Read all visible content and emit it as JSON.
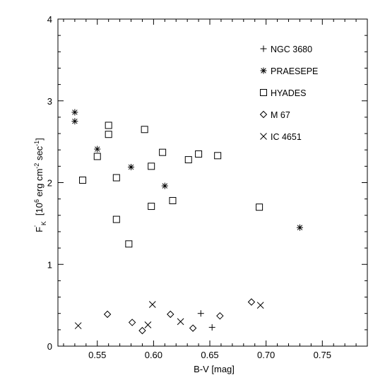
{
  "chart_data": {
    "type": "scatter",
    "title": "",
    "xlabel": "B-V  [mag]",
    "ylabel": {
      "symbol": "F",
      "symbol_sup": "'",
      "symbol_sub": "K",
      "units_open": "[10",
      "units_exp": "6",
      "units_mid": " erg cm",
      "units_exp2": "-2",
      "units_mid2": " sec",
      "units_exp3": "-1",
      "units_close": "]"
    },
    "xlim": [
      0.515,
      0.79
    ],
    "ylim": [
      0,
      4
    ],
    "xticks": [
      0.55,
      0.6,
      0.65,
      0.7,
      0.75
    ],
    "xtick_labels": [
      "0.55",
      "0.60",
      "0.65",
      "0.70",
      "0.75"
    ],
    "yticks": [
      0,
      1,
      2,
      3,
      4
    ],
    "ytick_labels": [
      "0",
      "1",
      "2",
      "3",
      "4"
    ],
    "legend_position": "top-right",
    "series": [
      {
        "name": "NGC 3680",
        "marker": "plus",
        "points": [
          [
            0.642,
            0.4
          ],
          [
            0.652,
            0.23
          ]
        ]
      },
      {
        "name": "PRAESEPE",
        "marker": "asterisk",
        "points": [
          [
            0.53,
            2.86
          ],
          [
            0.53,
            2.75
          ],
          [
            0.55,
            2.41
          ],
          [
            0.58,
            2.19
          ],
          [
            0.61,
            1.96
          ],
          [
            0.73,
            1.45
          ]
        ]
      },
      {
        "name": "HYADES",
        "marker": "square",
        "points": [
          [
            0.537,
            2.03
          ],
          [
            0.55,
            2.32
          ],
          [
            0.56,
            2.7
          ],
          [
            0.56,
            2.59
          ],
          [
            0.567,
            2.06
          ],
          [
            0.567,
            1.55
          ],
          [
            0.578,
            1.25
          ],
          [
            0.592,
            2.65
          ],
          [
            0.598,
            2.2
          ],
          [
            0.598,
            1.71
          ],
          [
            0.608,
            2.37
          ],
          [
            0.617,
            1.78
          ],
          [
            0.631,
            2.28
          ],
          [
            0.64,
            2.35
          ],
          [
            0.657,
            2.33
          ],
          [
            0.694,
            1.7
          ]
        ]
      },
      {
        "name": "M 67",
        "marker": "diamond",
        "points": [
          [
            0.559,
            0.39
          ],
          [
            0.581,
            0.29
          ],
          [
            0.59,
            0.19
          ],
          [
            0.615,
            0.39
          ],
          [
            0.635,
            0.22
          ],
          [
            0.659,
            0.37
          ],
          [
            0.687,
            0.54
          ]
        ]
      },
      {
        "name": "IC 4651",
        "marker": "cross",
        "points": [
          [
            0.533,
            0.25
          ],
          [
            0.595,
            0.26
          ],
          [
            0.599,
            0.51
          ],
          [
            0.624,
            0.3
          ],
          [
            0.695,
            0.5
          ]
        ]
      }
    ]
  }
}
